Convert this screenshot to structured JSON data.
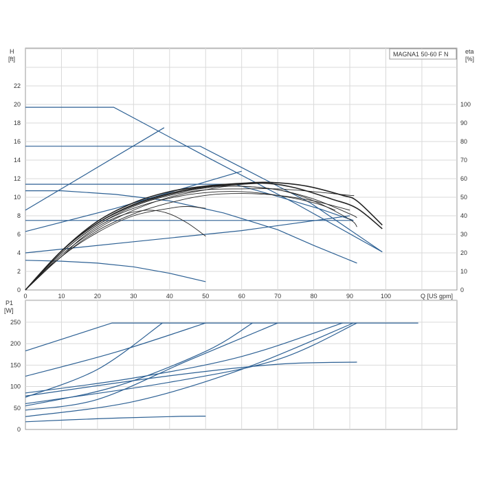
{
  "chart_data": [
    {
      "type": "line",
      "panel": "head",
      "legend_label": "MAGNA1 50-60 F N",
      "legend_position": "top-right",
      "grid": true,
      "xaxis": {
        "label": "Q [US gpm]",
        "range": [
          0,
          110
        ],
        "ticks": [
          0,
          10,
          20,
          30,
          40,
          50,
          60,
          70,
          80,
          90,
          100
        ]
      },
      "yaxis_left": {
        "label_top": "H",
        "label_unit": "[ft]",
        "range": [
          0,
          22
        ],
        "ticks": [
          0,
          2,
          4,
          6,
          8,
          10,
          12,
          14,
          16,
          18,
          20,
          22
        ]
      },
      "yaxis_right": {
        "label_top": "eta",
        "label_unit": "[%]",
        "range": [
          0,
          110
        ],
        "ticks": [
          0,
          10,
          20,
          30,
          40,
          50,
          60,
          70,
          80,
          90,
          100
        ]
      },
      "colors": {
        "head": "#2b5f93",
        "efficiency": "#222222"
      },
      "head_curves": [
        {
          "points": [
            [
              0,
              19.7
            ],
            [
              24.5,
              19.7
            ],
            [
              51,
              14.2
            ],
            [
              75,
              9.3
            ],
            [
              99,
              4.1
            ]
          ]
        },
        {
          "points": [
            [
              0,
              15.5
            ],
            [
              48.5,
              15.5
            ],
            [
              62,
              12.8
            ],
            [
              79,
              9.4
            ],
            [
              99,
              4.1
            ]
          ]
        },
        {
          "points": [
            [
              0,
              11.4
            ],
            [
              58,
              11.4
            ],
            [
              69,
              10.2
            ],
            [
              82,
              8.7
            ],
            [
              91,
              7.5
            ]
          ]
        },
        {
          "points": [
            [
              0,
              7.5
            ],
            [
              91,
              7.5
            ]
          ]
        },
        {
          "points": [
            [
              0,
              10.7
            ],
            [
              10,
              10.7
            ],
            [
              25,
              10.3
            ],
            [
              40,
              9.6
            ],
            [
              55,
              8.3
            ],
            [
              70,
              6.5
            ],
            [
              80,
              4.8
            ],
            [
              92,
              2.9
            ]
          ]
        },
        {
          "points": [
            [
              0,
              3.2
            ],
            [
              10,
              3.1
            ],
            [
              20,
              2.9
            ],
            [
              30,
              2.5
            ],
            [
              40,
              1.8
            ],
            [
              50,
              0.9
            ]
          ]
        },
        {
          "points": [
            [
              0,
              8.6
            ],
            [
              38.5,
              17.5
            ]
          ]
        },
        {
          "points": [
            [
              0,
              6.3
            ],
            [
              25,
              8.8
            ],
            [
              60,
              12.8
            ]
          ]
        },
        {
          "points": [
            [
              0,
              4.0
            ],
            [
              30,
              5.2
            ],
            [
              60,
              6.4
            ],
            [
              90,
              8.0
            ]
          ]
        }
      ],
      "efficiency_curves": [
        {
          "points": [
            [
              0,
              0
            ],
            [
              10,
              21
            ],
            [
              20,
              36
            ],
            [
              30,
              46
            ],
            [
              40,
              52
            ],
            [
              50,
              55.5
            ],
            [
              60,
              57
            ],
            [
              67,
              57.5
            ],
            [
              75,
              55
            ],
            [
              85,
              49
            ],
            [
              92,
              44
            ],
            [
              99,
              33
            ]
          ]
        },
        {
          "points": [
            [
              0,
              0
            ],
            [
              10,
              21
            ],
            [
              20,
              37
            ],
            [
              30,
              47
            ],
            [
              40,
              53
            ],
            [
              50,
              56
            ],
            [
              60,
              57.5
            ],
            [
              68,
              58
            ],
            [
              78,
              56
            ],
            [
              88,
              51
            ],
            [
              92,
              48
            ],
            [
              99,
              35
            ]
          ]
        },
        {
          "points": [
            [
              0,
              0
            ],
            [
              10,
              20
            ],
            [
              20,
              35
            ],
            [
              30,
              45
            ],
            [
              40,
              51
            ],
            [
              50,
              54
            ],
            [
              60,
              54.5
            ],
            [
              70,
              54.5
            ],
            [
              80,
              53
            ],
            [
              90,
              51
            ],
            [
              91,
              51
            ]
          ]
        },
        {
          "points": [
            [
              0,
              0
            ],
            [
              10,
              21
            ],
            [
              20,
              36
            ],
            [
              30,
              45.5
            ],
            [
              40,
              51.5
            ],
            [
              50,
              55
            ],
            [
              58,
              56
            ],
            [
              70,
              54
            ],
            [
              80,
              48
            ],
            [
              90,
              38
            ],
            [
              92,
              34
            ]
          ]
        },
        {
          "points": [
            [
              0,
              0
            ],
            [
              10,
              19
            ],
            [
              20,
              33
            ],
            [
              30,
              43
            ],
            [
              40,
              50
            ],
            [
              50,
              54
            ],
            [
              58,
              56
            ],
            [
              70,
              54
            ],
            [
              80,
              49
            ],
            [
              90,
              41
            ],
            [
              92,
              39
            ]
          ]
        },
        {
          "points": [
            [
              0,
              0
            ],
            [
              10,
              20
            ],
            [
              20,
              35
            ],
            [
              30,
              44
            ],
            [
              40,
              49.5
            ],
            [
              50,
              52.5
            ],
            [
              60,
              53
            ],
            [
              70,
              51
            ],
            [
              80,
              47
            ],
            [
              86,
              43
            ]
          ]
        },
        {
          "points": [
            [
              0,
              0
            ],
            [
              10,
              18
            ],
            [
              20,
              32
            ],
            [
              30,
              41
            ],
            [
              40,
              47
            ],
            [
              50,
              51
            ],
            [
              60,
              52
            ],
            [
              70,
              51
            ],
            [
              80,
              48
            ],
            [
              90,
              43
            ]
          ]
        },
        {
          "points": [
            [
              0,
              0
            ],
            [
              5,
              10
            ],
            [
              10,
              18
            ],
            [
              15,
              27
            ],
            [
              20,
              34
            ],
            [
              25,
              39
            ],
            [
              30,
              42
            ],
            [
              35,
              43
            ],
            [
              40,
              41
            ],
            [
              45,
              36
            ],
            [
              50,
              29
            ]
          ]
        },
        {
          "points": [
            [
              0,
              0
            ],
            [
              10,
              18
            ],
            [
              20,
              31
            ],
            [
              30,
              40
            ],
            [
              40,
              44
            ],
            [
              45,
              45
            ],
            [
              50,
              44
            ]
          ]
        }
      ]
    },
    {
      "type": "line",
      "panel": "power",
      "grid": true,
      "xaxis": {
        "range": [
          0,
          110
        ]
      },
      "yaxis_left": {
        "label_top": "P1",
        "label_unit": "[W]",
        "range": [
          0,
          275
        ],
        "ticks": [
          0,
          50,
          100,
          150,
          200,
          250
        ]
      },
      "colors": {
        "power": "#2b5f93"
      },
      "power_curves": [
        {
          "points": [
            [
              0,
              183
            ],
            [
              24,
              248
            ],
            [
              109,
              248
            ]
          ]
        },
        {
          "points": [
            [
              0,
              124
            ],
            [
              25,
              180
            ],
            [
              50,
              248
            ]
          ]
        },
        {
          "points": [
            [
              0,
              75
            ],
            [
              20,
              140
            ],
            [
              38,
              248
            ]
          ]
        },
        {
          "points": [
            [
              0,
              55
            ],
            [
              25,
              100
            ],
            [
              50,
              182
            ],
            [
              63,
              248
            ]
          ]
        },
        {
          "points": [
            [
              0,
              45
            ],
            [
              20,
              70
            ],
            [
              45,
              160
            ],
            [
              70,
              248
            ]
          ]
        },
        {
          "points": [
            [
              0,
              85
            ],
            [
              30,
              120
            ],
            [
              60,
              170
            ],
            [
              88,
              248
            ]
          ]
        },
        {
          "points": [
            [
              0,
              30
            ],
            [
              30,
              65
            ],
            [
              60,
              140
            ],
            [
              91,
              248
            ]
          ]
        },
        {
          "points": [
            [
              0,
              78
            ],
            [
              40,
              125
            ],
            [
              70,
              152
            ],
            [
              92,
              157
            ]
          ]
        },
        {
          "points": [
            [
              0,
              60
            ],
            [
              40,
              110
            ],
            [
              70,
              163
            ],
            [
              92,
              248
            ]
          ]
        },
        {
          "points": [
            [
              0,
              18
            ],
            [
              20,
              25
            ],
            [
              40,
              30
            ],
            [
              50,
              31
            ]
          ]
        }
      ]
    }
  ]
}
